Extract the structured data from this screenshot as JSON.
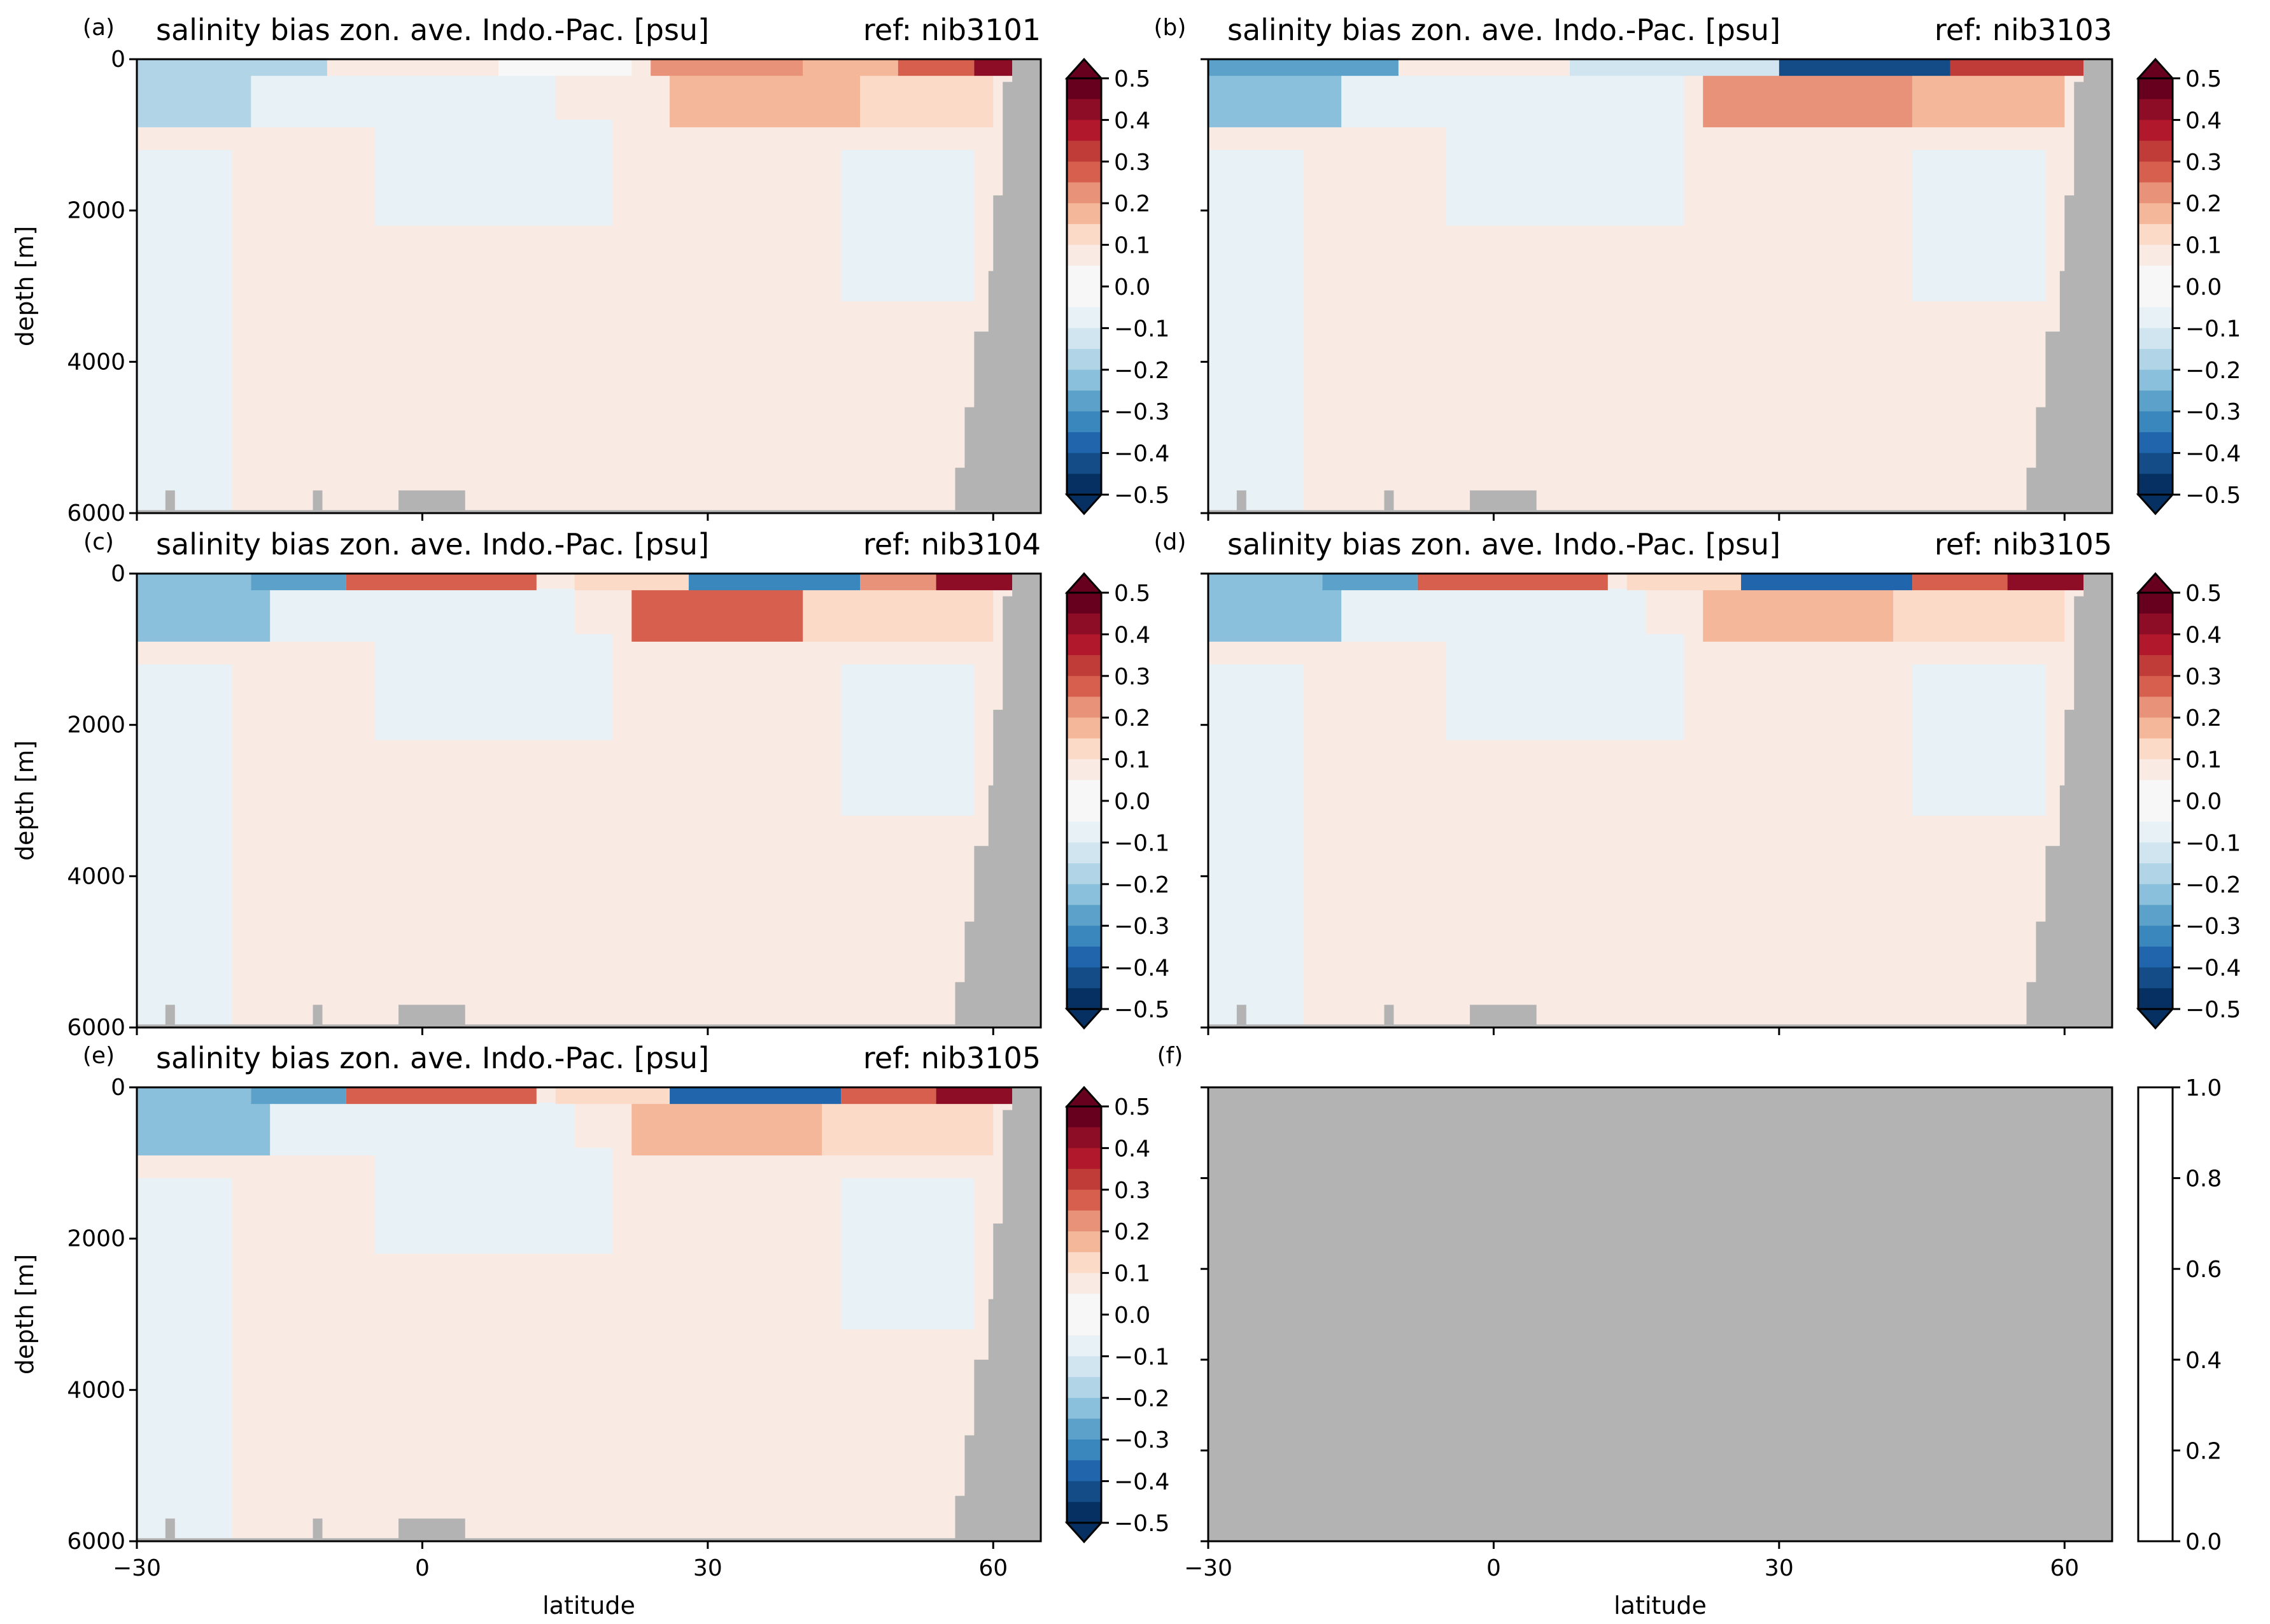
{
  "figure": {
    "colors": {
      "land": "#b3b3b3",
      "axes": "#000000",
      "diverging_scale": [
        "#053061",
        "#134c87",
        "#2166ac",
        "#3a87bd",
        "#5ba1ca",
        "#8ac0db",
        "#b1d5e7",
        "#d1e5f0",
        "#e8f1f6",
        "#f7f7f7",
        "#f9ebe3",
        "#fbdac8",
        "#f4b799",
        "#e8927a",
        "#d6604d",
        "#bf3c39",
        "#b2182b",
        "#8c0d25",
        "#67001f"
      ]
    },
    "colorbar": {
      "ticks": [
        "0.5",
        "0.4",
        "0.3",
        "0.2",
        "0.1",
        "0.0",
        "−0.1",
        "−0.2",
        "−0.3",
        "−0.4",
        "−0.5"
      ],
      "ticks_blank": [
        "1.0",
        "0.8",
        "0.6",
        "0.4",
        "0.2",
        "0.0"
      ]
    }
  },
  "chart_data": [
    {
      "panel": "(a)",
      "type": "heatmap",
      "title": "salinity bias zon. ave. Indo.-Pac. [psu]",
      "ref": "ref: nib3101",
      "ylabel": "depth [m]",
      "xlabel": "",
      "yticks": [
        "0",
        "2000",
        "4000",
        "6000"
      ],
      "xticks": [],
      "x": [
        -30,
        65
      ],
      "ylim": [
        6000,
        0
      ],
      "vmin": -0.5,
      "vmax": 0.5,
      "extend": "both",
      "surface_bands": [
        [
          -30,
          -10,
          -0.15
        ],
        [
          -10,
          8,
          0.05
        ],
        [
          8,
          22,
          0.0
        ],
        [
          24,
          40,
          0.22
        ],
        [
          40,
          50,
          0.18
        ],
        [
          50,
          58,
          0.25
        ],
        [
          58,
          62,
          0.45
        ]
      ],
      "mid_band": [
        [
          -30,
          -18,
          -0.15
        ],
        [
          -18,
          14,
          -0.06
        ],
        [
          26,
          46,
          0.18
        ],
        [
          46,
          60,
          0.12
        ]
      ],
      "deep_bias": 0.04
    },
    {
      "panel": "(b)",
      "type": "heatmap",
      "title": "salinity bias zon. ave. Indo.-Pac. [psu]",
      "ref": "ref: nib3103",
      "ylabel": "",
      "xlabel": "",
      "yticks": [
        "",
        "",
        "",
        ""
      ],
      "xticks": [],
      "x": [
        -30,
        65
      ],
      "ylim": [
        6000,
        0
      ],
      "vmin": -0.5,
      "vmax": 0.5,
      "extend": "both",
      "surface_bands": [
        [
          -30,
          -10,
          -0.3
        ],
        [
          -10,
          8,
          0.05
        ],
        [
          8,
          30,
          -0.1
        ],
        [
          30,
          48,
          -0.45
        ],
        [
          48,
          62,
          0.35
        ]
      ],
      "mid_band": [
        [
          -30,
          -16,
          -0.2
        ],
        [
          -16,
          20,
          -0.05
        ],
        [
          22,
          44,
          0.22
        ],
        [
          44,
          60,
          0.14
        ]
      ],
      "deep_bias": 0.04
    },
    {
      "panel": "(c)",
      "type": "heatmap",
      "title": "salinity bias zon. ave. Indo.-Pac. [psu]",
      "ref": "ref: nib3104",
      "ylabel": "depth [m]",
      "xlabel": "",
      "yticks": [
        "0",
        "2000",
        "4000",
        "6000"
      ],
      "xticks": [],
      "x": [
        -30,
        65
      ],
      "ylim": [
        6000,
        0
      ],
      "vmin": -0.5,
      "vmax": 0.5,
      "extend": "both",
      "surface_bands": [
        [
          -30,
          -18,
          -0.2
        ],
        [
          -18,
          -8,
          -0.3
        ],
        [
          -8,
          12,
          0.25
        ],
        [
          16,
          28,
          0.12
        ],
        [
          28,
          46,
          -0.35
        ],
        [
          46,
          54,
          0.2
        ],
        [
          54,
          62,
          0.45
        ]
      ],
      "mid_band": [
        [
          -30,
          -16,
          -0.2
        ],
        [
          -16,
          16,
          -0.06
        ],
        [
          22,
          40,
          0.25
        ],
        [
          40,
          60,
          0.1
        ]
      ],
      "deep_bias": 0.04
    },
    {
      "panel": "(d)",
      "type": "heatmap",
      "title": "salinity bias zon. ave. Indo.-Pac. [psu]",
      "ref": "ref: nib3105",
      "ylabel": "",
      "xlabel": "",
      "yticks": [
        "",
        "",
        "",
        ""
      ],
      "xticks": [],
      "x": [
        -30,
        65
      ],
      "ylim": [
        6000,
        0
      ],
      "vmin": -0.5,
      "vmax": 0.5,
      "extend": "both",
      "surface_bands": [
        [
          -30,
          -18,
          -0.2
        ],
        [
          -18,
          -8,
          -0.3
        ],
        [
          -8,
          12,
          0.25
        ],
        [
          14,
          26,
          0.1
        ],
        [
          26,
          44,
          -0.4
        ],
        [
          44,
          54,
          0.25
        ],
        [
          54,
          62,
          0.45
        ]
      ],
      "mid_band": [
        [
          -30,
          -16,
          -0.22
        ],
        [
          -16,
          16,
          -0.06
        ],
        [
          22,
          42,
          0.15
        ],
        [
          42,
          60,
          0.12
        ]
      ],
      "deep_bias": 0.04
    },
    {
      "panel": "(e)",
      "type": "heatmap",
      "title": "salinity bias zon. ave. Indo.-Pac. [psu]",
      "ref": "ref: nib3105",
      "ylabel": "depth [m]",
      "xlabel": "latitude",
      "yticks": [
        "0",
        "2000",
        "4000",
        "6000"
      ],
      "xticks": [
        "−30",
        "0",
        "30",
        "60"
      ],
      "x": [
        -30,
        65
      ],
      "ylim": [
        6000,
        0
      ],
      "vmin": -0.5,
      "vmax": 0.5,
      "extend": "both",
      "surface_bands": [
        [
          -30,
          -18,
          -0.2
        ],
        [
          -18,
          -8,
          -0.3
        ],
        [
          -8,
          12,
          0.25
        ],
        [
          14,
          26,
          0.1
        ],
        [
          26,
          44,
          -0.4
        ],
        [
          44,
          54,
          0.25
        ],
        [
          54,
          62,
          0.45
        ]
      ],
      "mid_band": [
        [
          -30,
          -16,
          -0.22
        ],
        [
          -16,
          16,
          -0.06
        ],
        [
          22,
          42,
          0.15
        ],
        [
          42,
          60,
          0.12
        ]
      ],
      "deep_bias": 0.04
    },
    {
      "panel": "(f)",
      "type": "heatmap",
      "empty": true,
      "title": "",
      "ref": "",
      "ylabel": "",
      "xlabel": "latitude",
      "yticks": [
        "",
        "",
        "",
        "",
        "",
        ""
      ],
      "xticks": [
        "−30",
        "0",
        "30",
        "60"
      ],
      "x": [
        -30,
        65
      ],
      "ylim": [
        0,
        1
      ],
      "vmin": 0,
      "vmax": 1,
      "extend": "neither"
    }
  ]
}
